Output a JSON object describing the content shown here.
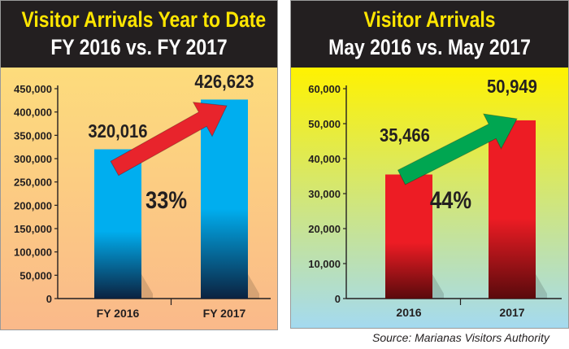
{
  "source": "Source: Marianas Visitors Authority",
  "chart_data": [
    {
      "type": "bar",
      "title": "Visitor Arrivals Year to Date",
      "subtitle": "FY 2016 vs. FY 2017",
      "categories": [
        "FY 2016",
        "FY 2017"
      ],
      "values": [
        320016,
        426623
      ],
      "value_labels": [
        "320,016",
        "426,623"
      ],
      "change_label": "33%",
      "ylim": [
        0,
        450000
      ],
      "yticks": [
        0,
        50000,
        100000,
        150000,
        200000,
        250000,
        300000,
        350000,
        400000,
        450000
      ],
      "ytick_labels": [
        "0",
        "50,000",
        "100,000",
        "150,000",
        "200,000",
        "250,000",
        "300,000",
        "350,000",
        "400,000",
        "450,000"
      ],
      "grid": false,
      "colors": {
        "background_top": "#fddc7c",
        "background_bottom": "#fab98a",
        "bar_top": "#00aeef",
        "bar_bottom": "#0b2240",
        "arrow": "#e8242c",
        "title": "#ffe600",
        "subtitle": "#ffffff",
        "header": "#231f20"
      }
    },
    {
      "type": "bar",
      "title": "Visitor Arrivals",
      "subtitle": "May 2016 vs. May 2017",
      "categories": [
        "2016",
        "2017"
      ],
      "values": [
        35466,
        50949
      ],
      "value_labels": [
        "35,466",
        "50,949"
      ],
      "change_label": "44%",
      "ylim": [
        0,
        60000
      ],
      "yticks": [
        0,
        10000,
        20000,
        30000,
        40000,
        50000,
        60000
      ],
      "ytick_labels": [
        "0",
        "10,000",
        "20,000",
        "30,000",
        "40,000",
        "50,000",
        "60,000"
      ],
      "grid": false,
      "colors": {
        "background_top": "#fff200",
        "background_bottom": "#a4daf0",
        "bar_top": "#ed1c24",
        "bar_bottom": "#5a0a0c",
        "arrow": "#00a651",
        "title": "#ffe600",
        "subtitle": "#ffffff",
        "header": "#231f20"
      }
    }
  ]
}
